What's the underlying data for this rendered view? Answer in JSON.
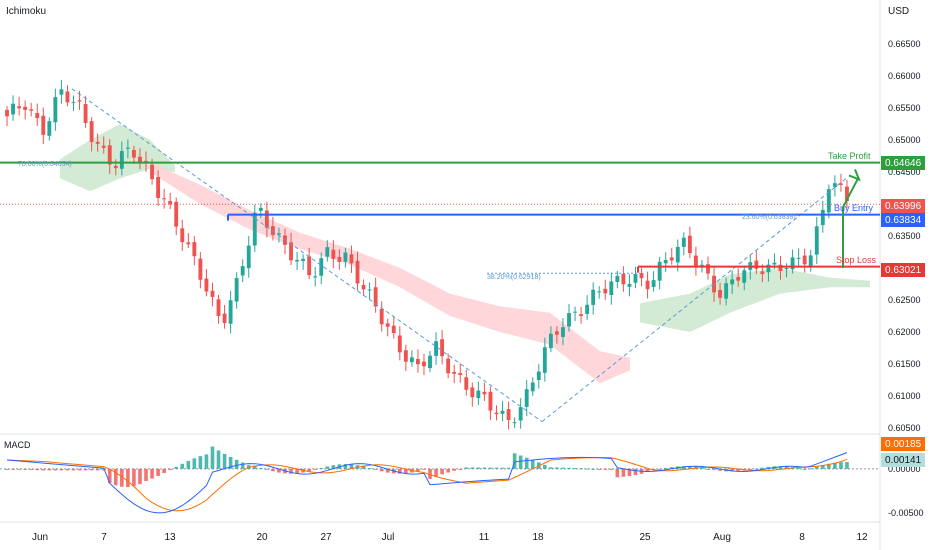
{
  "header": {
    "indicator": "Ichimoku",
    "currency": "USD"
  },
  "macd_label": "MACD",
  "annotations": {
    "take_profit": "Take Profit",
    "buy_entry": "Buy Entry",
    "stop_loss": "Stop Loss",
    "fib_786": "78.60%(0.64654)",
    "fib_236": "23.60%(0.63838)",
    "fib_382": "38.20%(0.62918)"
  },
  "price_tags": {
    "take_profit": "0.64646",
    "current": "0.63996",
    "buy_entry": "0.63834",
    "stop_loss": "0.63021",
    "macd_line": "0.00185",
    "macd_signal": "0.00141"
  },
  "colors": {
    "up": "#26a69a",
    "down": "#ef5350",
    "take_profit": "#2e9e3f",
    "buy_entry": "#2962ff",
    "stop_loss": "#e53935",
    "fib": "#5b9bd5",
    "cloud_bull": "#c8e6c9",
    "cloud_bear": "#ffcdd2",
    "macd": "#2962ff",
    "signal": "#ff6d00"
  },
  "chart_data": [
    {
      "type": "candlestick",
      "title": "",
      "overlay": "Ichimoku cloud",
      "ylim": [
        0.604,
        0.668
      ],
      "y_ticks": [
        "0.66500",
        "0.66000",
        "0.65500",
        "0.65000",
        "0.64500",
        "0.64000",
        "0.63500",
        "0.63000",
        "0.62500",
        "0.62000",
        "0.61500",
        "0.61000",
        "0.60500"
      ],
      "x_ticks": [
        "Jun",
        "7",
        "13",
        "20",
        "27",
        "Jul",
        "11",
        "18",
        "25",
        "Aug",
        "8",
        "12"
      ],
      "swing_points_close": [
        0.653,
        0.656,
        0.652,
        0.657,
        0.655,
        0.65,
        0.646,
        0.648,
        0.645,
        0.64,
        0.633,
        0.628,
        0.622,
        0.628,
        0.639,
        0.636,
        0.632,
        0.628,
        0.633,
        0.632,
        0.626,
        0.622,
        0.618,
        0.614,
        0.617,
        0.614,
        0.611,
        0.608,
        0.606,
        0.61,
        0.616,
        0.621,
        0.624,
        0.626,
        0.627,
        0.629,
        0.628,
        0.631,
        0.634,
        0.63,
        0.625,
        0.629,
        0.631,
        0.63,
        0.63,
        0.6325,
        0.644,
        0.6405
      ],
      "horizontal_levels": {
        "take_profit": 0.64646,
        "buy_entry": 0.63834,
        "stop_loss": 0.63021,
        "last_price": 0.63996
      },
      "fibonacci": [
        {
          "label": "78.60%",
          "value": 0.64654
        },
        {
          "label": "23.60%",
          "value": 0.63838
        },
        {
          "label": "38.20%",
          "value": 0.62918
        }
      ],
      "grid": false
    },
    {
      "type": "bar",
      "name": "MACD",
      "ylim": [
        -0.0058,
        0.0035
      ],
      "y_ticks": [
        "0.00000",
        "-0.00500"
      ],
      "last_values": {
        "macd": 0.00185,
        "signal": 0.00141
      }
    }
  ]
}
